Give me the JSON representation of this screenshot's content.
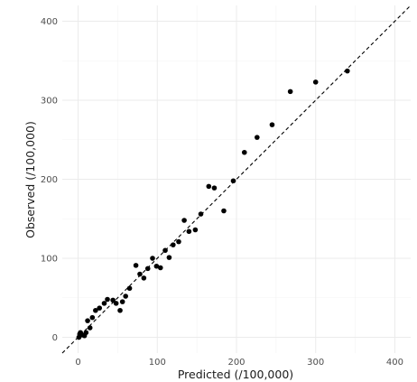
{
  "chart_data": {
    "type": "scatter",
    "title": "",
    "xlabel": "Predicted (/100,000)",
    "ylabel": "Observed (/100,000)",
    "xlim": [
      -20,
      420
    ],
    "ylim": [
      -20,
      420
    ],
    "x_ticks": [
      0,
      100,
      200,
      300,
      400
    ],
    "y_ticks": [
      0,
      100,
      200,
      300,
      400
    ],
    "x_tick_labels": [
      "0",
      "100",
      "200",
      "300",
      "400"
    ],
    "y_tick_labels": [
      "0",
      "100",
      "200",
      "300",
      "400"
    ],
    "grid": true,
    "legend": "none",
    "point_color": "#000000",
    "reference_line": {
      "type": "identity",
      "style": "dashed",
      "color": "#000000"
    },
    "series": [
      {
        "points": [
          [
            1,
            0
          ],
          [
            2,
            4
          ],
          [
            3,
            6
          ],
          [
            5,
            3
          ],
          [
            8,
            2
          ],
          [
            10,
            6
          ],
          [
            12,
            21
          ],
          [
            15,
            12
          ],
          [
            18,
            25
          ],
          [
            22,
            34
          ],
          [
            27,
            37
          ],
          [
            33,
            43
          ],
          [
            37,
            48
          ],
          [
            44,
            47
          ],
          [
            48,
            43
          ],
          [
            53,
            34
          ],
          [
            56,
            45
          ],
          [
            60,
            52
          ],
          [
            65,
            62
          ],
          [
            73,
            91
          ],
          [
            78,
            80
          ],
          [
            83,
            75
          ],
          [
            88,
            87
          ],
          [
            94,
            100
          ],
          [
            99,
            90
          ],
          [
            104,
            88
          ],
          [
            110,
            110
          ],
          [
            115,
            101
          ],
          [
            120,
            117
          ],
          [
            127,
            121
          ],
          [
            134,
            148
          ],
          [
            140,
            134
          ],
          [
            148,
            136
          ],
          [
            155,
            156
          ],
          [
            165,
            191
          ],
          [
            172,
            189
          ],
          [
            184,
            160
          ],
          [
            196,
            198
          ],
          [
            210,
            234
          ],
          [
            226,
            253
          ],
          [
            245,
            269
          ],
          [
            268,
            311
          ],
          [
            300,
            323
          ],
          [
            340,
            337
          ]
        ]
      }
    ]
  }
}
